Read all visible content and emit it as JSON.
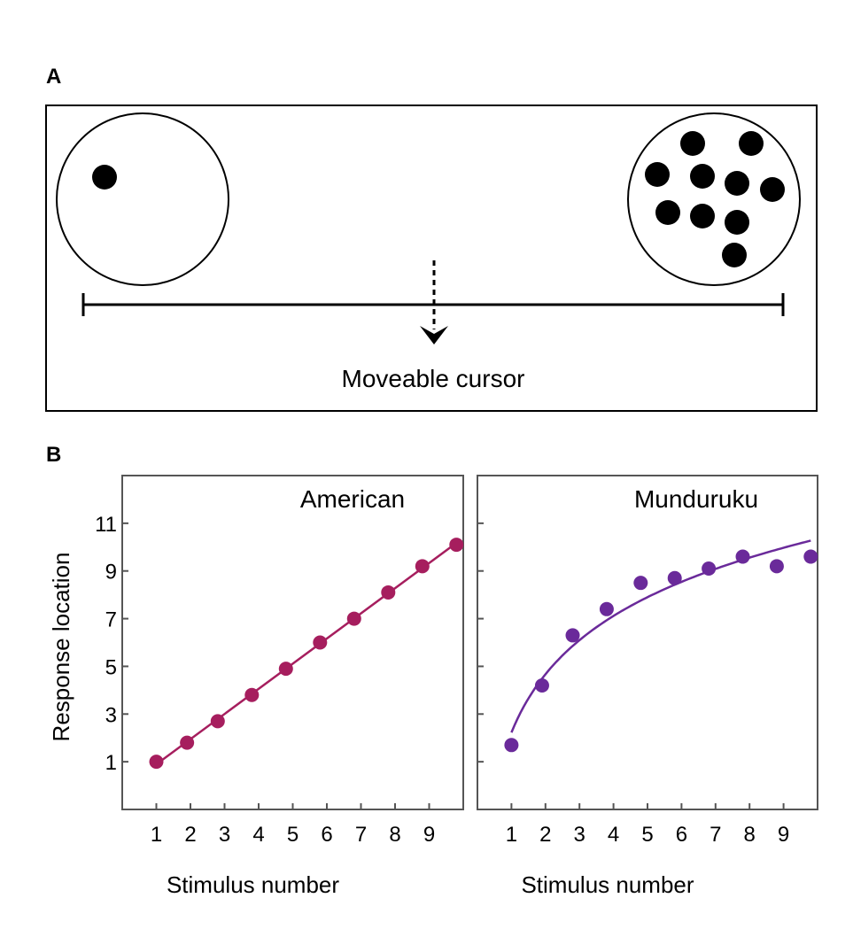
{
  "panel_a": {
    "letter": "A",
    "cursor_label": "Moveable cursor",
    "left_circle_dots": 1,
    "right_circle_dots": 10
  },
  "panel_b": {
    "letter": "B"
  },
  "chart_data": [
    {
      "type": "scatter",
      "title": "American",
      "xlabel": "Stimulus number",
      "ylabel": "Response location",
      "x_ticks": [
        1,
        2,
        3,
        4,
        5,
        6,
        7,
        8,
        9
      ],
      "y_ticks": [
        1,
        3,
        5,
        7,
        9,
        11
      ],
      "xlim": [
        0,
        10
      ],
      "ylim": [
        -1,
        13
      ],
      "color": "#a61e5e",
      "fit": "linear",
      "x": [
        1,
        1.9,
        2.8,
        3.8,
        4.8,
        5.8,
        6.8,
        7.8,
        8.8,
        9.8
      ],
      "y": [
        1.0,
        1.8,
        2.7,
        3.8,
        4.9,
        6.0,
        7.0,
        8.1,
        9.2,
        10.1
      ]
    },
    {
      "type": "scatter",
      "title": "Munduruku",
      "xlabel": "Stimulus number",
      "ylabel": "",
      "x_ticks": [
        1,
        2,
        3,
        4,
        5,
        6,
        7,
        8,
        9
      ],
      "y_ticks": [
        1,
        3,
        5,
        7,
        9,
        11
      ],
      "xlim": [
        0,
        10
      ],
      "ylim": [
        -1,
        13
      ],
      "color": "#6a2a9a",
      "fit": "logarithmic",
      "x": [
        1,
        1.9,
        2.8,
        3.8,
        4.8,
        5.8,
        6.8,
        7.8,
        8.8,
        9.8
      ],
      "y": [
        1.7,
        4.2,
        6.3,
        7.4,
        8.5,
        8.7,
        9.1,
        9.6,
        9.2,
        9.6
      ]
    }
  ]
}
